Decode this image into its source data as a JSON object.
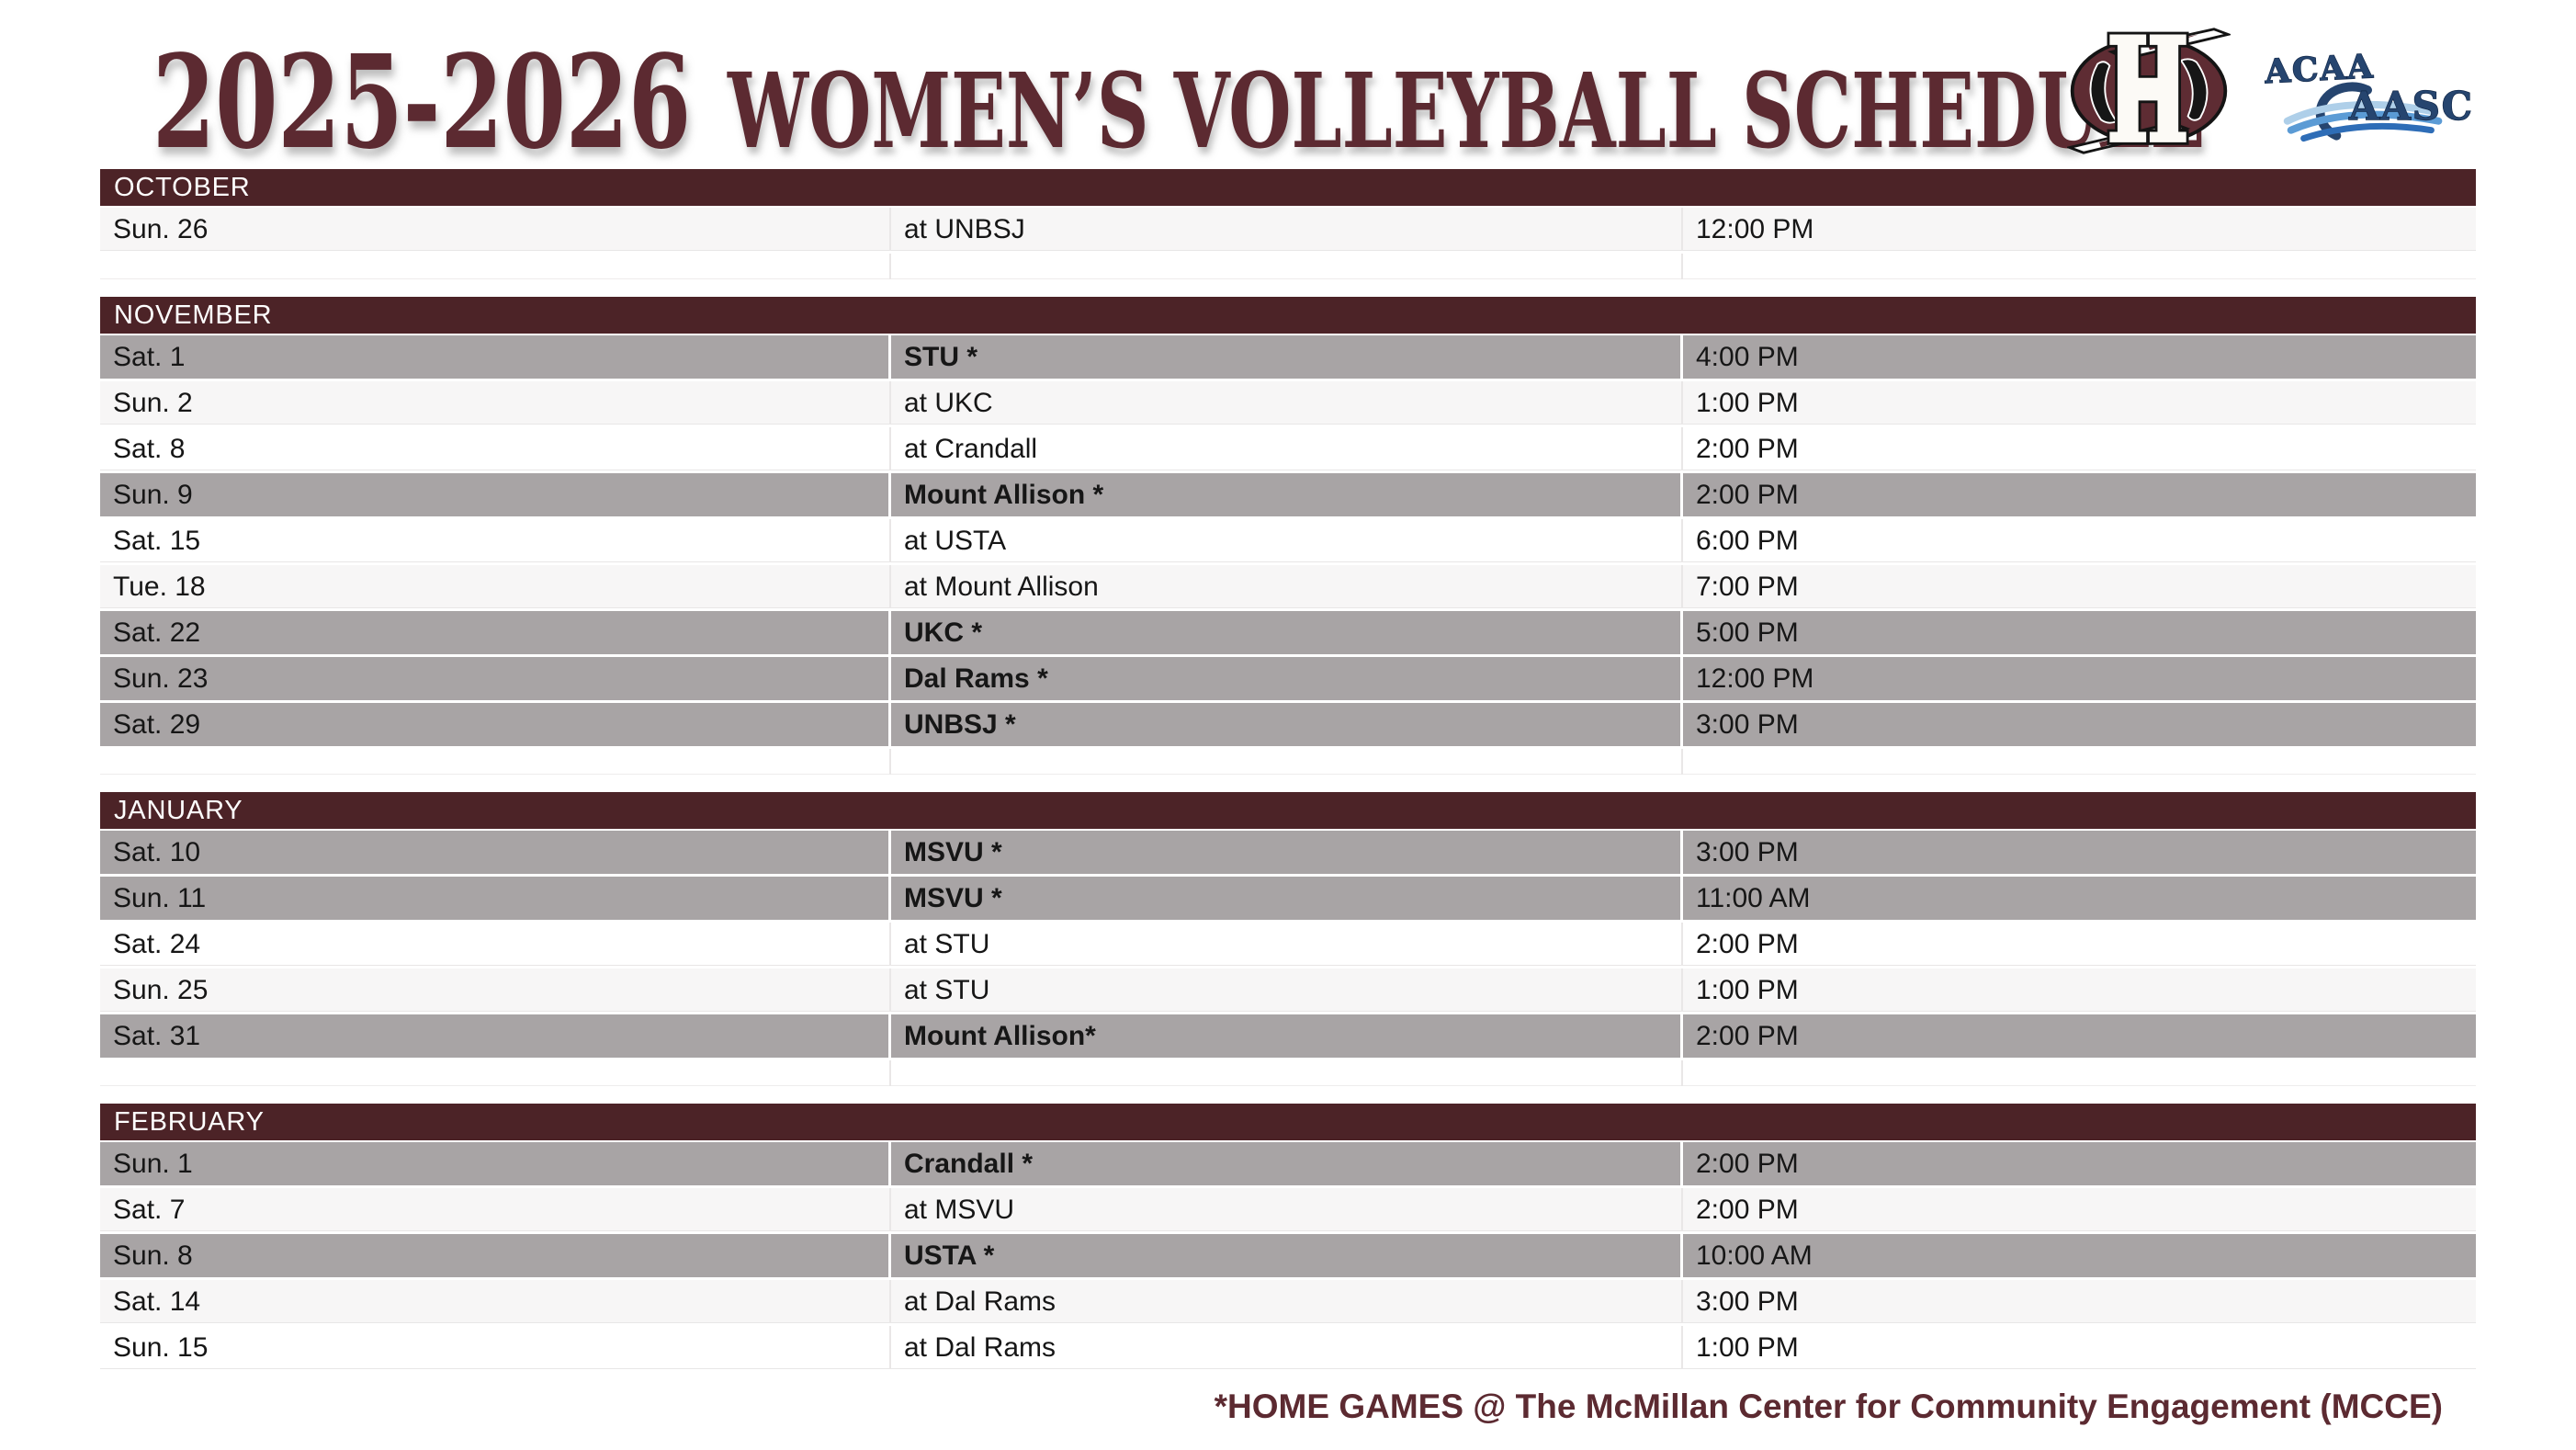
{
  "header": {
    "season": "2025-2026",
    "title": "WOMEN’S VOLLEYBALL SCHEDULE",
    "team_logo": "huskies-h-logo",
    "league_logo": {
      "line1": "ACAA",
      "line2": "AASC"
    }
  },
  "colors": {
    "maroon_bar": "#4c2327",
    "title_maroon": "#5c2a31",
    "home_row_gray": "#a8a4a5",
    "league_navy": "#26456f",
    "wave_light_blue": "#aecfe9",
    "wave_mid_blue": "#5b9bd5",
    "wave_dark_blue": "#2e6db7"
  },
  "sections": [
    {
      "month": "OCTOBER",
      "spacer": true,
      "games": [
        {
          "date": "Sun. 26",
          "opponent": "at UNBSJ",
          "time": "12:00 PM",
          "home": false,
          "style": "light"
        }
      ]
    },
    {
      "month": "NOVEMBER",
      "spacer": true,
      "games": [
        {
          "date": "Sat. 1",
          "opponent": "STU *",
          "time": "4:00 PM",
          "home": true,
          "style": "home"
        },
        {
          "date": "Sun. 2",
          "opponent": "at UKC",
          "time": "1:00 PM",
          "home": false,
          "style": "light"
        },
        {
          "date": "Sat. 8",
          "opponent": "at Crandall",
          "time": "2:00 PM",
          "home": false,
          "style": "white"
        },
        {
          "date": "Sun. 9",
          "opponent": "Mount Allison *",
          "time": "2:00 PM",
          "home": true,
          "style": "home"
        },
        {
          "date": "Sat. 15",
          "opponent": "at USTA",
          "time": "6:00 PM",
          "home": false,
          "style": "white"
        },
        {
          "date": "Tue. 18",
          "opponent": "at Mount Allison",
          "time": "7:00 PM",
          "home": false,
          "style": "light"
        },
        {
          "date": "Sat. 22",
          "opponent": "UKC *",
          "time": "5:00 PM",
          "home": true,
          "style": "home"
        },
        {
          "date": "Sun. 23",
          "opponent": "Dal Rams *",
          "time": "12:00 PM",
          "home": true,
          "style": "home"
        },
        {
          "date": "Sat. 29",
          "opponent": "UNBSJ *",
          "time": "3:00 PM",
          "home": true,
          "style": "home"
        }
      ]
    },
    {
      "month": "JANUARY",
      "spacer": true,
      "games": [
        {
          "date": "Sat. 10",
          "opponent": "MSVU *",
          "time": "3:00 PM",
          "home": true,
          "style": "home"
        },
        {
          "date": "Sun. 11",
          "opponent": "MSVU *",
          "time": "11:00 AM",
          "home": true,
          "style": "home"
        },
        {
          "date": "Sat. 24",
          "opponent": "at STU",
          "time": "2:00 PM",
          "home": false,
          "style": "white"
        },
        {
          "date": "Sun. 25",
          "opponent": "at STU",
          "time": "1:00 PM",
          "home": false,
          "style": "light"
        },
        {
          "date": "Sat. 31",
          "opponent": "Mount Allison*",
          "time": "2:00 PM",
          "home": true,
          "style": "home"
        }
      ]
    },
    {
      "month": "FEBRUARY",
      "spacer": false,
      "games": [
        {
          "date": "Sun. 1",
          "opponent": "Crandall *",
          "time": "2:00 PM",
          "home": true,
          "style": "home"
        },
        {
          "date": "Sat. 7",
          "opponent": "at MSVU",
          "time": "2:00 PM",
          "home": false,
          "style": "light"
        },
        {
          "date": "Sun. 8",
          "opponent": "USTA *",
          "time": "10:00 AM",
          "home": true,
          "style": "home"
        },
        {
          "date": "Sat. 14",
          "opponent": "at Dal Rams",
          "time": "3:00 PM",
          "home": false,
          "style": "light"
        },
        {
          "date": "Sun. 15",
          "opponent": "at Dal Rams",
          "time": "1:00 PM",
          "home": false,
          "style": "white"
        }
      ]
    }
  ],
  "footer": {
    "note": "*HOME GAMES @ The McMillan Center for Community Engagement (MCCE)"
  }
}
